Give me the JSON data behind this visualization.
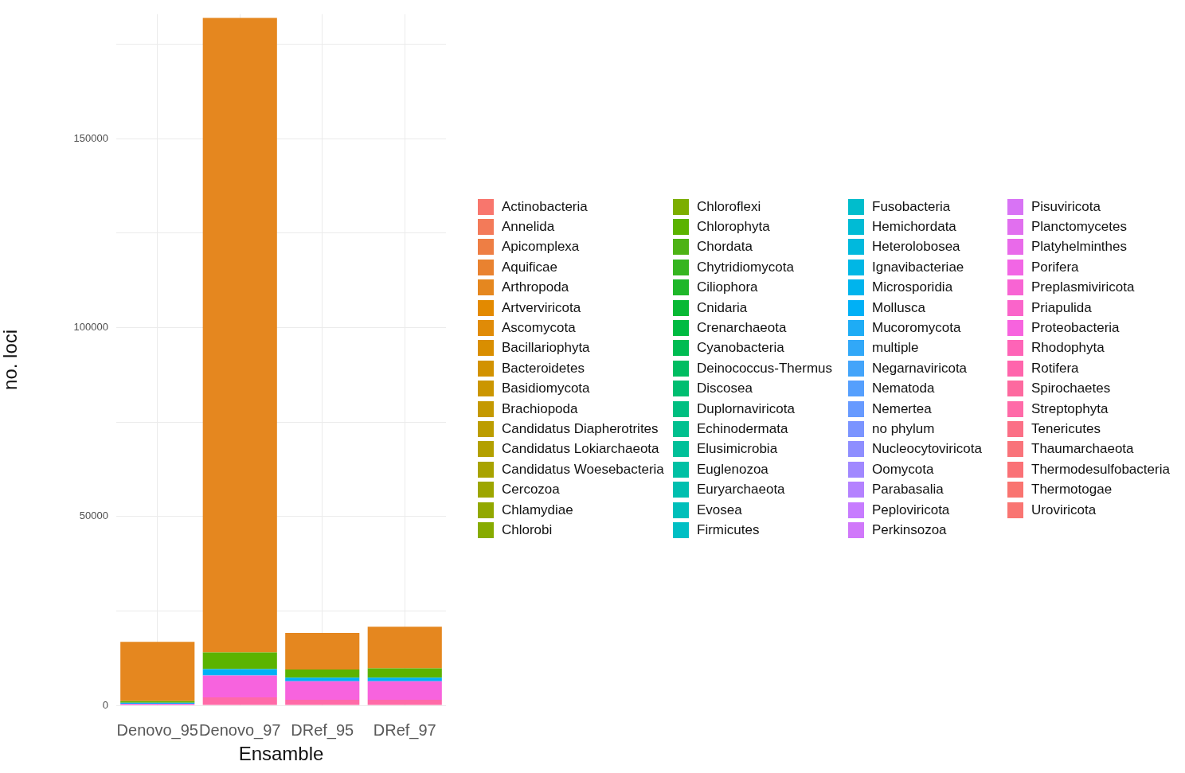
{
  "chart_data": {
    "type": "bar",
    "stacked": true,
    "xlabel": "Ensamble",
    "ylabel": "no. loci",
    "categories": [
      "Denovo_95",
      "Denovo_97",
      "DRef_95",
      "DRef_97"
    ],
    "ylim": [
      0,
      183000
    ],
    "yticks": [
      0,
      {
        "value": 25000,
        "label": null
      },
      50000,
      {
        "value": 75000,
        "label": null
      },
      100000,
      {
        "value": 125000,
        "label": null
      },
      150000,
      {
        "value": 175000,
        "label": null
      }
    ],
    "grid": true,
    "legend": "right",
    "series": [
      {
        "name": "Uroviricota",
        "color": "#f97572",
        "values": [
          0,
          0,
          0,
          0
        ]
      },
      {
        "name": "Thermotogae",
        "color": "#f97470",
        "values": [
          0,
          0,
          0,
          0
        ]
      },
      {
        "name": "Thermodesulfobacteria",
        "color": "#fa7176",
        "values": [
          0,
          0,
          0,
          0
        ]
      },
      {
        "name": "Thaumarchaeota",
        "color": "#f9737a",
        "values": [
          0,
          0,
          0,
          0
        ]
      },
      {
        "name": "Tenericutes",
        "color": "#fb6f86",
        "values": [
          0,
          0,
          0,
          0
        ]
      },
      {
        "name": "Streptophyta",
        "color": "#ff6aa8",
        "values": [
          0,
          2100,
          1500,
          1500
        ]
      },
      {
        "name": "Spirochaetes",
        "color": "#fd699f",
        "values": [
          0,
          0,
          0,
          0
        ]
      },
      {
        "name": "Rotifera",
        "color": "#ff65ac",
        "values": [
          0,
          0,
          0,
          0
        ]
      },
      {
        "name": "Rhodophyta",
        "color": "#fe64b7",
        "values": [
          0,
          0,
          0,
          0
        ]
      },
      {
        "name": "Proteobacteria",
        "color": "#f763de",
        "values": [
          400,
          5800,
          4900,
          4900
        ]
      },
      {
        "name": "Priapulida",
        "color": "#fa64ca",
        "values": [
          0,
          0,
          0,
          0
        ]
      },
      {
        "name": "Preplasmiviricota",
        "color": "#f864d3",
        "values": [
          0,
          0,
          0,
          0
        ]
      },
      {
        "name": "Porifera",
        "color": "#f266e5",
        "values": [
          0,
          0,
          0,
          0
        ]
      },
      {
        "name": "Platyhelminthes",
        "color": "#e96aea",
        "values": [
          0,
          0,
          0,
          0
        ]
      },
      {
        "name": "Planctomycetes",
        "color": "#e16fef",
        "values": [
          0,
          0,
          0,
          0
        ]
      },
      {
        "name": "Pisuviricota",
        "color": "#d873f5",
        "values": [
          0,
          0,
          0,
          0
        ]
      },
      {
        "name": "Perkinsozoa",
        "color": "#d078fa",
        "values": [
          0,
          0,
          0,
          0
        ]
      },
      {
        "name": "Peploviricota",
        "color": "#c77cff",
        "values": [
          0,
          0,
          0,
          0
        ]
      },
      {
        "name": "Parabasalia",
        "color": "#b482ff",
        "values": [
          0,
          0,
          0,
          0
        ]
      },
      {
        "name": "Oomycota",
        "color": "#a188ff",
        "values": [
          0,
          0,
          0,
          0
        ]
      },
      {
        "name": "Nucleocytoviricota",
        "color": "#8e8eff",
        "values": [
          0,
          0,
          0,
          0
        ]
      },
      {
        "name": "no phylum",
        "color": "#7b94ff",
        "values": [
          0,
          0,
          0,
          0
        ]
      },
      {
        "name": "Nemertea",
        "color": "#679aff",
        "values": [
          0,
          0,
          0,
          0
        ]
      },
      {
        "name": "Nematoda",
        "color": "#559ffd",
        "values": [
          0,
          0,
          0,
          0
        ]
      },
      {
        "name": "Negarnaviricota",
        "color": "#43a4fa",
        "values": [
          0,
          0,
          0,
          0
        ]
      },
      {
        "name": "multiple",
        "color": "#31a8f8",
        "values": [
          0,
          0,
          0,
          0
        ]
      },
      {
        "name": "Mucoromycota",
        "color": "#1eacf5",
        "values": [
          0,
          0,
          0,
          0
        ]
      },
      {
        "name": "Mollusca",
        "color": "#00b0f6",
        "values": [
          300,
          1700,
          900,
          900
        ]
      },
      {
        "name": "Microsporidia",
        "color": "#00b4ed",
        "values": [
          0,
          0,
          0,
          0
        ]
      },
      {
        "name": "Ignavibacteriae",
        "color": "#00b7e5",
        "values": [
          0,
          0,
          0,
          0
        ]
      },
      {
        "name": "Heterolobosea",
        "color": "#00b9dd",
        "values": [
          0,
          0,
          0,
          0
        ]
      },
      {
        "name": "Hemichordata",
        "color": "#00bbd5",
        "values": [
          0,
          0,
          0,
          0
        ]
      },
      {
        "name": "Fusobacteria",
        "color": "#00bdcc",
        "values": [
          0,
          0,
          0,
          0
        ]
      },
      {
        "name": "Firmicutes",
        "color": "#00bfc4",
        "values": [
          0,
          0,
          0,
          0
        ]
      },
      {
        "name": "Evosea",
        "color": "#00bfba",
        "values": [
          0,
          0,
          0,
          0
        ]
      },
      {
        "name": "Euryarchaeota",
        "color": "#00bfaf",
        "values": [
          0,
          0,
          0,
          0
        ]
      },
      {
        "name": "Euglenozoa",
        "color": "#00c0a4",
        "values": [
          0,
          0,
          0,
          0
        ]
      },
      {
        "name": "Elusimicrobia",
        "color": "#00c099",
        "values": [
          0,
          0,
          0,
          0
        ]
      },
      {
        "name": "Echinodermata",
        "color": "#00c08f",
        "values": [
          0,
          0,
          0,
          0
        ]
      },
      {
        "name": "Duplornaviricota",
        "color": "#00bf81",
        "values": [
          0,
          0,
          0,
          0
        ]
      },
      {
        "name": "Discosea",
        "color": "#00be71",
        "values": [
          0,
          0,
          0,
          0
        ]
      },
      {
        "name": "Deinococcus-Thermus",
        "color": "#00bd62",
        "values": [
          0,
          0,
          0,
          0
        ]
      },
      {
        "name": "Cyanobacteria",
        "color": "#00bc52",
        "values": [
          0,
          0,
          0,
          0
        ]
      },
      {
        "name": "Crenarchaeota",
        "color": "#00bb42",
        "values": [
          0,
          0,
          0,
          0
        ]
      },
      {
        "name": "Cnidaria",
        "color": "#08b935",
        "values": [
          0,
          0,
          0,
          0
        ]
      },
      {
        "name": "Ciliophora",
        "color": "#1fb72a",
        "values": [
          0,
          0,
          0,
          0
        ]
      },
      {
        "name": "Chytridiomycota",
        "color": "#36b520",
        "values": [
          0,
          0,
          0,
          0
        ]
      },
      {
        "name": "Chordata",
        "color": "#4eb315",
        "values": [
          0,
          0,
          0,
          0
        ]
      },
      {
        "name": "Chlorophyta",
        "color": "#5bb300",
        "values": [
          400,
          4400,
          2200,
          2500
        ]
      },
      {
        "name": "Chloroflexi",
        "color": "#7cae00",
        "values": [
          0,
          0,
          0,
          0
        ]
      },
      {
        "name": "Chlorobi",
        "color": "#87ab00",
        "values": [
          0,
          0,
          0,
          0
        ]
      },
      {
        "name": "Chlamydiae",
        "color": "#92a800",
        "values": [
          0,
          0,
          0,
          0
        ]
      },
      {
        "name": "Cercozoa",
        "color": "#9da600",
        "values": [
          0,
          0,
          0,
          0
        ]
      },
      {
        "name": "Candidatus Woesebacteria",
        "color": "#a8a300",
        "values": [
          0,
          0,
          0,
          0
        ]
      },
      {
        "name": "Candidatus Lokiarchaeota",
        "color": "#b3a000",
        "values": [
          0,
          0,
          0,
          0
        ]
      },
      {
        "name": "Candidatus Diapherotrites",
        "color": "#bc9d00",
        "values": [
          0,
          0,
          0,
          0
        ]
      },
      {
        "name": "Brachiopoda",
        "color": "#c49900",
        "values": [
          0,
          0,
          0,
          0
        ]
      },
      {
        "name": "Basidiomycota",
        "color": "#cb9600",
        "values": [
          0,
          0,
          0,
          0
        ]
      },
      {
        "name": "Bacteroidetes",
        "color": "#d29200",
        "values": [
          0,
          0,
          0,
          0
        ]
      },
      {
        "name": "Bacillariophyta",
        "color": "#d98e00",
        "values": [
          0,
          0,
          0,
          0
        ]
      },
      {
        "name": "Ascomycota",
        "color": "#e08b07",
        "values": [
          0,
          0,
          0,
          0
        ]
      },
      {
        "name": "Artverviricota",
        "color": "#e38a00",
        "values": [
          0,
          0,
          0,
          0
        ]
      },
      {
        "name": "Arthropoda",
        "color": "#e5871f",
        "values": [
          15700,
          168000,
          9700,
          11000
        ]
      },
      {
        "name": "Aquificae",
        "color": "#e98230",
        "values": [
          0,
          0,
          0,
          0
        ]
      },
      {
        "name": "Apicomplexa",
        "color": "#ee7e44",
        "values": [
          0,
          0,
          0,
          0
        ]
      },
      {
        "name": "Annelida",
        "color": "#f37a59",
        "values": [
          0,
          0,
          0,
          0
        ]
      },
      {
        "name": "Actinobacteria",
        "color": "#f8766d",
        "values": [
          0,
          0,
          0,
          0
        ]
      }
    ]
  }
}
